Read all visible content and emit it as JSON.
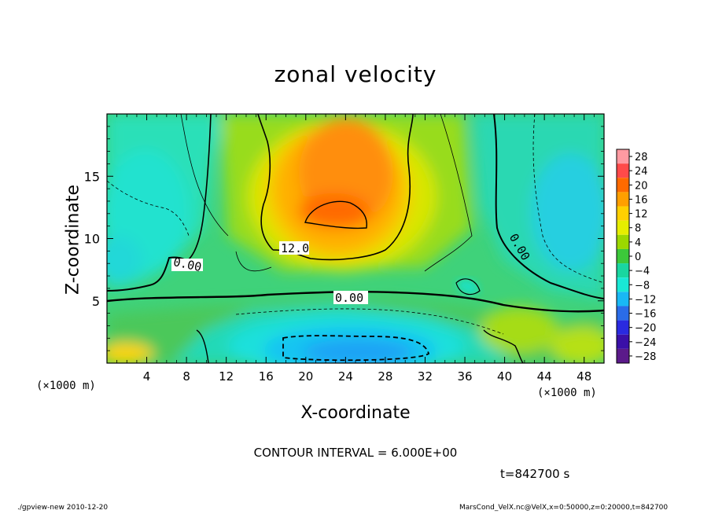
{
  "chart_data": {
    "type": "heatmap",
    "title": "zonal velocity",
    "xlabel": "X-coordinate",
    "ylabel": "Z-coordinate",
    "x_unit_label": "(×1000 m)",
    "xlim": [
      0,
      50
    ],
    "ylim": [
      0,
      20
    ],
    "x_ticks": [
      "4",
      "8",
      "12",
      "16",
      "20",
      "24",
      "28",
      "32",
      "36",
      "40",
      "44",
      "48"
    ],
    "x_tick_values": [
      4,
      8,
      12,
      16,
      20,
      24,
      28,
      32,
      36,
      40,
      44,
      48
    ],
    "y_ticks": [
      "15",
      "10",
      "5"
    ],
    "y_tick_values": [
      15,
      10,
      5
    ],
    "colorbar_labels": [
      "28",
      "24",
      "20",
      "16",
      "12",
      "8",
      "4",
      "0",
      "−4",
      "−8",
      "−12",
      "−16",
      "−20",
      "−24",
      "−28"
    ],
    "colorbar_colors": [
      "#ff9aa2",
      "#ff4a4a",
      "#ff6a00",
      "#ff9f00",
      "#ffd000",
      "#e6ee00",
      "#9cd800",
      "#3cc83a",
      "#19d6a0",
      "#19e8d6",
      "#19b8f5",
      "#2a6ce8",
      "#2a2ae0",
      "#3a10a8",
      "#5b1a8a"
    ],
    "contour_labels": [
      "12.0",
      "0.00",
      "0.00",
      "0.00"
    ],
    "contour_interval_text": "CONTOUR INTERVAL = 6.000E+00",
    "time_text": "t=842700 s",
    "features": [
      {
        "name": "positive jet core",
        "x": 24,
        "z": 12.5,
        "value": 20
      },
      {
        "name": "upper positive region",
        "x": 24,
        "z": 16,
        "value": 16
      },
      {
        "name": "near-surface negative core",
        "x": 24,
        "z": 1.2,
        "value": -14
      },
      {
        "name": "right-side negative region",
        "x": 47,
        "z": 12,
        "value": -6
      },
      {
        "name": "left-side negative region",
        "x": 3,
        "z": 10,
        "value": -6
      }
    ]
  },
  "footer": {
    "left": "./gpview-new   2010-12-20",
    "right": "MarsCond_VelX.nc@VelX,x=0:50000,z=0:20000,t=842700"
  }
}
